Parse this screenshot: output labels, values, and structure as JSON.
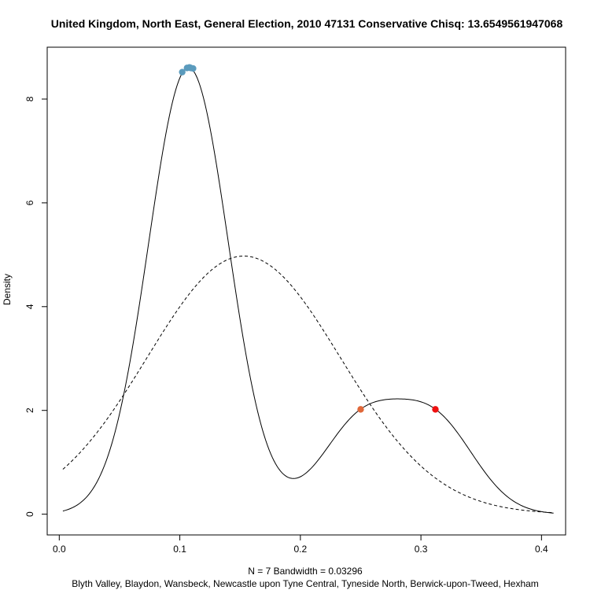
{
  "chart_data": {
    "type": "line",
    "title": "United Kingdom, North East, General Election, 2010 47131 Conservative Chisq: 13.6549561947068",
    "ylabel": "Density",
    "xlabel_line1": "N = 7   Bandwidth = 0.03296",
    "xlabel_line2": "Blyth Valley, Blaydon, Wansbeck, Newcastle upon Tyne Central, Tyneside North, Berwick-upon-Tweed, Hexham",
    "xlim": [
      -0.01,
      0.42
    ],
    "ylim": [
      -0.4,
      9.0
    ],
    "x_ticks": [
      0.0,
      0.1,
      0.2,
      0.3,
      0.4
    ],
    "x_tick_labels": [
      "0.0",
      "0.1",
      "0.2",
      "0.3",
      "0.4"
    ],
    "y_ticks": [
      0,
      2,
      4,
      6,
      8
    ],
    "y_tick_labels": [
      "0",
      "2",
      "4",
      "6",
      "8"
    ],
    "bandwidth": 0.03296,
    "n": 7,
    "kde_range": [
      0.003,
      0.41
    ],
    "normal_curve": {
      "mean": 0.153,
      "sd": 0.0802
    },
    "series": [
      {
        "style": "solid",
        "description_key": "kde"
      },
      {
        "style": "dashed",
        "description_key": "normal"
      }
    ],
    "points": [
      {
        "x": 0.102,
        "y": 8.52,
        "color": "#5b9bbd"
      },
      {
        "x": 0.106,
        "y": 8.6,
        "color": "#5b9bbd"
      },
      {
        "x": 0.108,
        "y": 8.61,
        "color": "#5b9bbd"
      },
      {
        "x": 0.109,
        "y": 8.6,
        "color": "#5b9bbd"
      },
      {
        "x": 0.111,
        "y": 8.59,
        "color": "#5b9bbd"
      },
      {
        "x": 0.25,
        "y": 2.02,
        "color": "#e0683a"
      },
      {
        "x": 0.312,
        "y": 2.02,
        "color": "#ee1111"
      }
    ],
    "grid": false
  }
}
